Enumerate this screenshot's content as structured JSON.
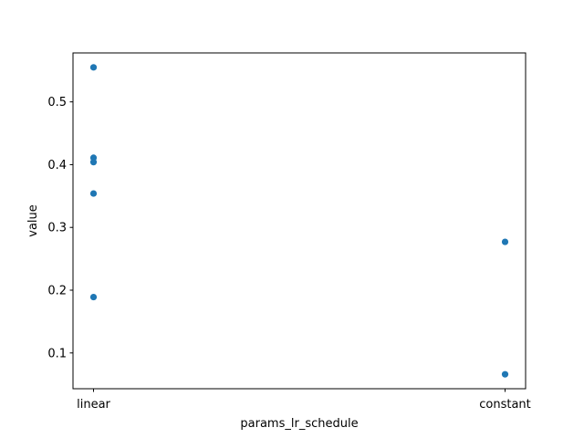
{
  "chart_data": {
    "type": "scatter",
    "title": "",
    "xlabel": "params_lr_schedule",
    "ylabel": "value",
    "categories": [
      "linear",
      "constant"
    ],
    "ylim": [
      0.043,
      0.578
    ],
    "yticks": [
      0.1,
      0.2,
      0.3,
      0.4,
      0.5
    ],
    "ytick_labels": [
      "0.1",
      "0.2",
      "0.3",
      "0.4",
      "0.5"
    ],
    "grid": false,
    "legend": "none",
    "marker_color": "#1f77b4",
    "points": [
      {
        "x": "linear",
        "y": 0.555
      },
      {
        "x": "linear",
        "y": 0.411
      },
      {
        "x": "linear",
        "y": 0.404
      },
      {
        "x": "linear",
        "y": 0.354
      },
      {
        "x": "linear",
        "y": 0.189
      },
      {
        "x": "constant",
        "y": 0.277
      },
      {
        "x": "constant",
        "y": 0.066
      }
    ]
  }
}
